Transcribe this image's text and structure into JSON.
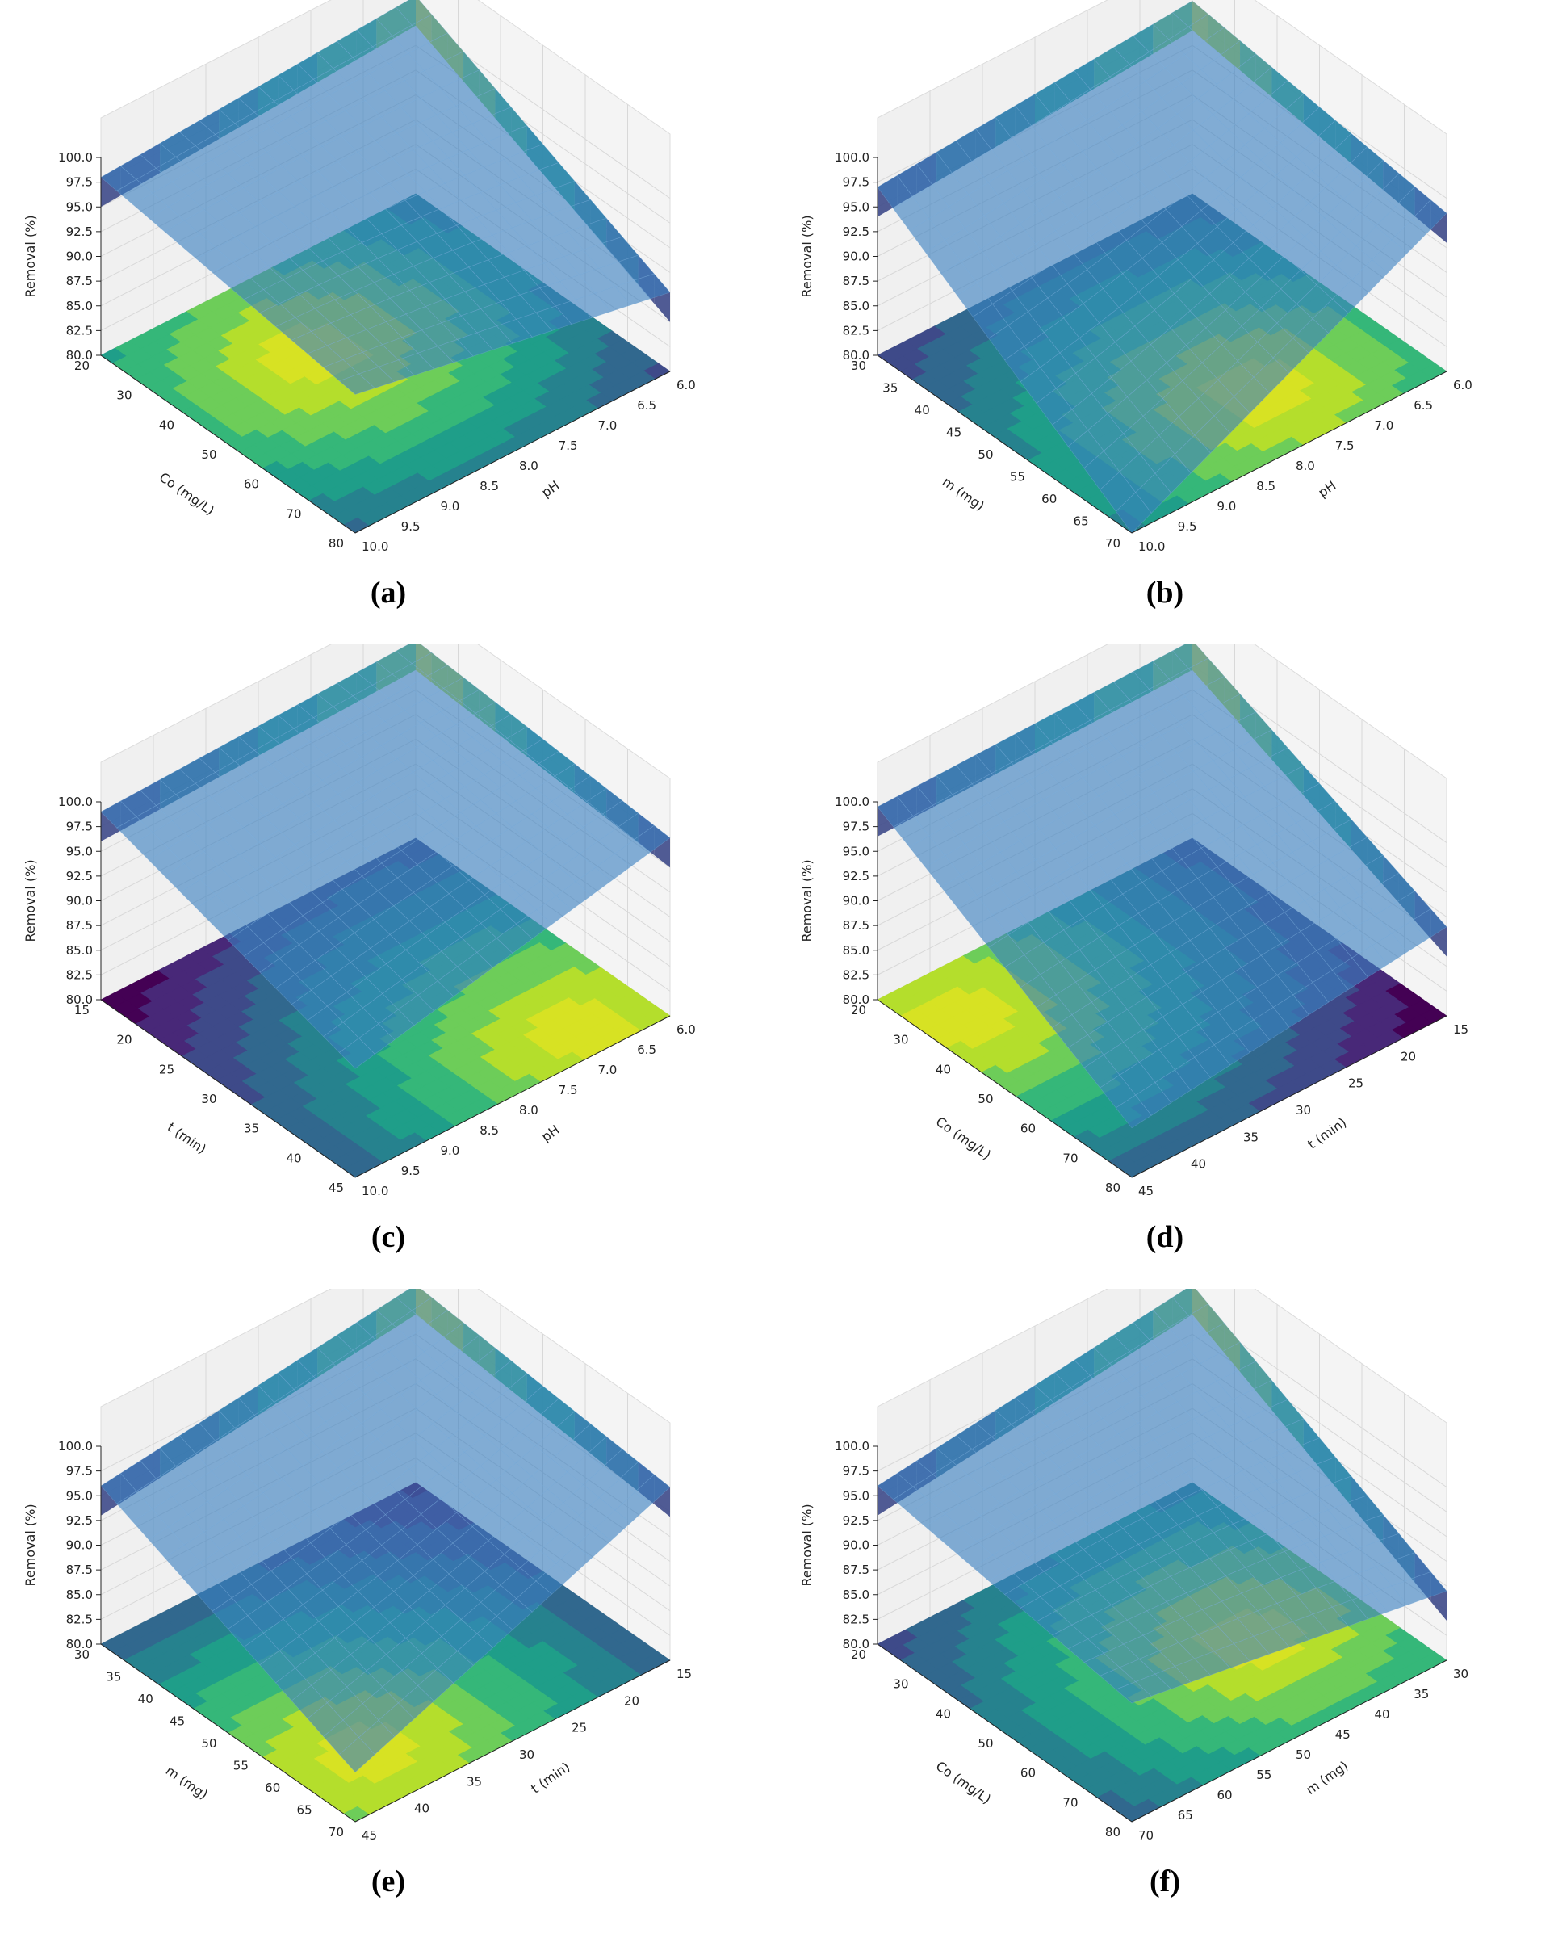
{
  "chart_data": [
    {
      "label": "(a)",
      "type": "surface3d",
      "zlabel": "Removal (%)",
      "zticks": [
        "80.0",
        "82.5",
        "85.0",
        "87.5",
        "90.0",
        "92.5",
        "95.0",
        "97.5",
        "100.0"
      ],
      "axis1": {
        "label": "Co (mg/L)",
        "ticks": [
          "20",
          "30",
          "40",
          "50",
          "60",
          "70",
          "80"
        ]
      },
      "axis2": {
        "label": "pH",
        "ticks": [
          "10.0",
          "9.5",
          "9.0",
          "8.5",
          "8.0",
          "7.5",
          "7.0",
          "6.5",
          "6.0"
        ]
      },
      "zlim": [
        80,
        100
      ],
      "surface": {
        "corners": {
          "left": 98.0,
          "back": 100.0,
          "right": 88.0,
          "front": 94.0
        },
        "curvature": 1.0
      },
      "contour_colormap": "viridis",
      "contour_peak": [
        0.35,
        0.4
      ]
    },
    {
      "label": "(b)",
      "type": "surface3d",
      "zlabel": "Removal (%)",
      "zticks": [
        "80.0",
        "82.5",
        "85.0",
        "87.5",
        "90.0",
        "92.5",
        "95.0",
        "97.5",
        "100.0"
      ],
      "axis1": {
        "label": "m (mg)",
        "ticks": [
          "30",
          "35",
          "40",
          "45",
          "50",
          "55",
          "60",
          "65",
          "70"
        ]
      },
      "axis2": {
        "label": "pH",
        "ticks": [
          "10.0",
          "9.5",
          "9.0",
          "8.5",
          "8.0",
          "7.5",
          "7.0",
          "6.5",
          "6.0"
        ]
      },
      "zlim": [
        80,
        100
      ],
      "surface": {
        "corners": {
          "left": 97.0,
          "back": 99.5,
          "right": 96.0,
          "front": 80.0
        },
        "curvature": -1.5
      },
      "contour_colormap": "viridis",
      "contour_peak": [
        0.75,
        0.6
      ]
    },
    {
      "label": "(c)",
      "type": "surface3d",
      "zlabel": "Removal (%)",
      "zticks": [
        "80.0",
        "82.5",
        "85.0",
        "87.5",
        "90.0",
        "92.5",
        "95.0",
        "97.5",
        "100.0"
      ],
      "axis1": {
        "label": "t (min)",
        "ticks": [
          "15",
          "20",
          "25",
          "30",
          "35",
          "40",
          "45"
        ]
      },
      "axis2": {
        "label": "pH",
        "ticks": [
          "10.0",
          "9.5",
          "9.0",
          "8.5",
          "8.0",
          "7.5",
          "7.0",
          "6.5",
          "6.0"
        ]
      },
      "zlim": [
        80,
        100
      ],
      "surface": {
        "corners": {
          "left": 99.0,
          "back": 100.0,
          "right": 98.0,
          "front": 91.0
        },
        "curvature": 0.6
      },
      "contour_colormap": "viridis",
      "contour_peak": [
        0.9,
        0.8
      ]
    },
    {
      "label": "(d)",
      "type": "surface3d",
      "zlabel": "Removal (%)",
      "zticks": [
        "80.0",
        "82.5",
        "85.0",
        "87.5",
        "90.0",
        "92.5",
        "95.0",
        "97.5",
        "100.0"
      ],
      "axis1": {
        "label": "Co (mg/L)",
        "ticks": [
          "20",
          "30",
          "40",
          "50",
          "60",
          "70",
          "80"
        ]
      },
      "axis2": {
        "label": "t (min)",
        "ticks": [
          "45",
          "40",
          "35",
          "30",
          "25",
          "20",
          "15"
        ]
      },
      "zlim": [
        80,
        100
      ],
      "surface": {
        "corners": {
          "left": 99.5,
          "back": 100.0,
          "right": 89.0,
          "front": 85.0
        },
        "curvature": 0.8
      },
      "contour_colormap": "viridis",
      "contour_peak": [
        0.2,
        0.1
      ]
    },
    {
      "label": "(e)",
      "type": "surface3d",
      "zlabel": "Removal (%)",
      "zticks": [
        "80.0",
        "82.5",
        "85.0",
        "87.5",
        "90.0",
        "92.5",
        "95.0",
        "97.5",
        "100.0"
      ],
      "axis1": {
        "label": "m (mg)",
        "ticks": [
          "30",
          "35",
          "40",
          "45",
          "50",
          "55",
          "60",
          "65",
          "70"
        ]
      },
      "axis2": {
        "label": "t (min)",
        "ticks": [
          "45",
          "40",
          "35",
          "30",
          "25",
          "20",
          "15"
        ]
      },
      "zlim": [
        80,
        100
      ],
      "surface": {
        "corners": {
          "left": 96.0,
          "back": 100.0,
          "right": 97.5,
          "front": 85.0
        },
        "curvature": -1.2
      },
      "contour_colormap": "viridis",
      "contour_peak": [
        0.8,
        0.2
      ]
    },
    {
      "label": "(f)",
      "type": "surface3d",
      "zlabel": "Removal (%)",
      "zticks": [
        "80.0",
        "82.5",
        "85.0",
        "87.5",
        "90.0",
        "92.5",
        "95.0",
        "97.5",
        "100.0"
      ],
      "axis1": {
        "label": "Co (mg/L)",
        "ticks": [
          "20",
          "30",
          "40",
          "50",
          "60",
          "70",
          "80"
        ]
      },
      "axis2": {
        "label": "m (mg)",
        "ticks": [
          "70",
          "65",
          "60",
          "55",
          "50",
          "45",
          "40",
          "35",
          "30"
        ]
      },
      "zlim": [
        80,
        100
      ],
      "surface": {
        "corners": {
          "left": 96.0,
          "back": 100.0,
          "right": 87.0,
          "front": 92.0
        },
        "curvature": 1.3
      },
      "contour_colormap": "viridis",
      "contour_peak": [
        0.6,
        0.7
      ]
    }
  ]
}
